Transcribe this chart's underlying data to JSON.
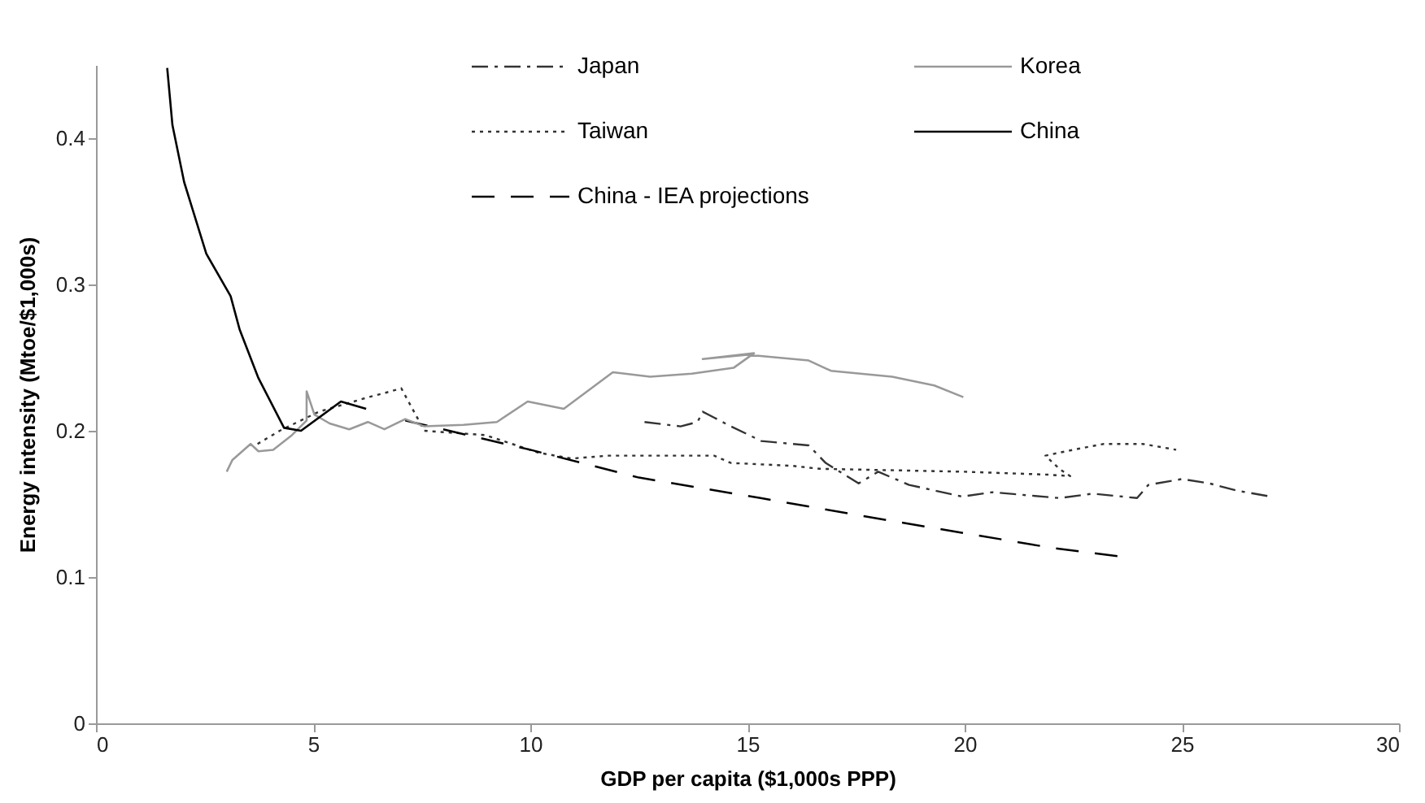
{
  "chart_data": {
    "type": "line",
    "xlabel": "GDP per capita ($1,000s PPP)",
    "ylabel": "Energy intensity (Mtoe/$1,000s)",
    "xlim": [
      0,
      30
    ],
    "xticks": [
      0,
      5,
      10,
      15,
      20,
      25,
      30
    ],
    "ylim": [
      0,
      0.45
    ],
    "yticks": [
      0,
      0.1,
      0.2,
      0.3,
      0.4
    ],
    "grid": false,
    "legend": "top",
    "marker": "none",
    "series": [
      {
        "name": "Japan",
        "color": "#333333",
        "line_style": "dashed",
        "x": [
          12.63,
          13.46,
          13.85,
          13.97,
          14.23,
          14.62,
          15.32,
          16.41,
          16.8,
          17.56,
          18.01,
          18.72,
          19.94,
          20.64,
          22.18,
          22.95,
          23.97,
          24.23,
          25.0,
          25.64,
          26.28,
          27.05
        ],
        "values": [
          0.206,
          0.203,
          0.206,
          0.213,
          0.209,
          0.203,
          0.193,
          0.19,
          0.178,
          0.164,
          0.172,
          0.163,
          0.155,
          0.158,
          0.154,
          0.157,
          0.154,
          0.163,
          0.167,
          0.164,
          0.159,
          0.155
        ]
      },
      {
        "name": "Taiwan",
        "color": "#333333",
        "line_style": "dotted",
        "x": [
          3.72,
          4.23,
          5.13,
          6.28,
          6.67,
          7.03,
          7.56,
          8.97,
          10.19,
          10.96,
          11.8,
          14.23,
          14.62,
          16.03,
          16.67,
          20.0,
          21.92,
          22.43,
          22.18,
          21.86,
          22.5,
          23.2,
          24.1,
          24.87
        ],
        "values": [
          0.191,
          0.2,
          0.213,
          0.223,
          0.226,
          0.229,
          0.2,
          0.197,
          0.185,
          0.181,
          0.183,
          0.183,
          0.178,
          0.176,
          0.174,
          0.172,
          0.17,
          0.169,
          0.174,
          0.183,
          0.187,
          0.191,
          0.191,
          0.187
        ]
      },
      {
        "name": "China - IEA projections",
        "color": "#000000",
        "line_style": "dashed",
        "x": [
          7.12,
          10.0,
          12.5,
          15.3,
          18.0,
          20.0,
          22.0,
          23.6
        ],
        "values": [
          0.207,
          0.187,
          0.168,
          0.154,
          0.14,
          0.13,
          0.12,
          0.114
        ]
      },
      {
        "name": "Korea",
        "color": "#999999",
        "line_style": "solid",
        "x": [
          3.01,
          3.14,
          3.56,
          3.74,
          4.08,
          4.51,
          4.85,
          4.85,
          5.03,
          5.38,
          5.83,
          6.26,
          6.64,
          7.12,
          7.56,
          8.46,
          9.23,
          9.94,
          10.77,
          11.9,
          12.76,
          13.72,
          14.68,
          15.15,
          13.97,
          15.0,
          16.41,
          16.92,
          18.33,
          19.3,
          19.97
        ],
        "values": [
          0.172,
          0.18,
          0.191,
          0.186,
          0.187,
          0.197,
          0.207,
          0.227,
          0.211,
          0.205,
          0.201,
          0.206,
          0.201,
          0.208,
          0.203,
          0.204,
          0.206,
          0.22,
          0.215,
          0.24,
          0.237,
          0.239,
          0.243,
          0.253,
          0.249,
          0.252,
          0.248,
          0.241,
          0.237,
          0.231,
          0.223
        ]
      },
      {
        "name": "China",
        "color": "#000000",
        "line_style": "solid",
        "x": [
          1.64,
          1.76,
          2.03,
          2.54,
          3.1,
          3.31,
          3.74,
          4.33,
          4.72,
          5.64,
          6.22
        ],
        "values": [
          0.448,
          0.409,
          0.37,
          0.321,
          0.292,
          0.269,
          0.236,
          0.202,
          0.2,
          0.22,
          0.215
        ]
      }
    ]
  }
}
